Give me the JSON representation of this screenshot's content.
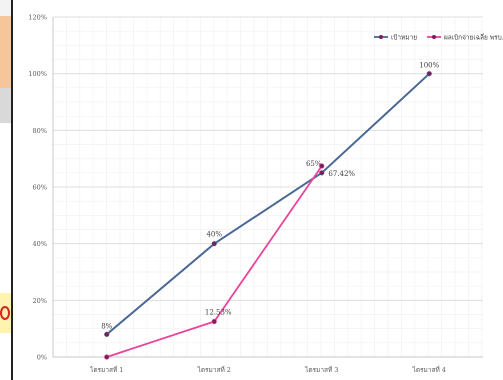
{
  "left_strip": {
    "items": [
      "",
      "",
      "",
      "",
      "",
      "",
      "",
      "",
      ""
    ]
  },
  "chart_data": {
    "type": "line",
    "title": "",
    "xlabel": "",
    "ylabel": "",
    "categories": [
      "ไตรมาสที่ 1",
      "ไตรมาสที่ 2",
      "ไตรมาสที่ 3",
      "ไตรมาสที่ 4"
    ],
    "ylim": [
      0,
      120
    ],
    "yticks": [
      0,
      20,
      40,
      60,
      80,
      100,
      120
    ],
    "ytick_labels": [
      "0%",
      "20%",
      "40%",
      "60%",
      "80%",
      "100%",
      "120%"
    ],
    "grid": true,
    "legend_position": "top-right",
    "series": [
      {
        "name": "เป้าหมาย",
        "color": "#4a6894",
        "values": [
          8,
          40,
          65,
          100
        ],
        "labels": [
          "8%",
          "40%",
          "65%",
          "100%"
        ]
      },
      {
        "name": "ผลเบิกจ่ายเฉลี่ย พรบ.",
        "color": "#e8459b",
        "values": [
          0,
          12.53,
          67.42,
          null
        ],
        "labels": [
          "",
          "12.53%",
          "67.42%",
          ""
        ]
      }
    ]
  }
}
